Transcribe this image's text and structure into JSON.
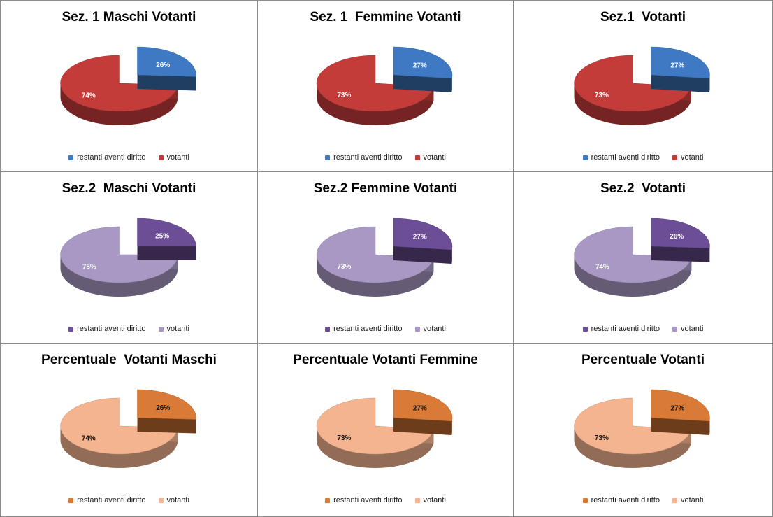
{
  "chart_data": [
    {
      "type": "pie",
      "title": "Sez. 1 Maschi Votanti",
      "labels": [
        "restanti aventi diritto",
        "votanti"
      ],
      "values": [
        26,
        74
      ],
      "data_labels": [
        "26%",
        "74%"
      ],
      "colors": [
        "#3f79c4",
        "#c43c3a"
      ],
      "legend_position": "bottom"
    },
    {
      "type": "pie",
      "title": "Sez. 1  Femmine Votanti",
      "labels": [
        "restanti aventi diritto",
        "votanti"
      ],
      "values": [
        27,
        73
      ],
      "data_labels": [
        "27%",
        "73%"
      ],
      "colors": [
        "#3f79c4",
        "#c43c3a"
      ],
      "legend_position": "bottom"
    },
    {
      "type": "pie",
      "title": "Sez.1  Votanti",
      "labels": [
        "restanti aventi diritto",
        "votanti"
      ],
      "values": [
        27,
        73
      ],
      "data_labels": [
        "27%",
        "73%"
      ],
      "colors": [
        "#3f79c4",
        "#c43c3a"
      ],
      "legend_position": "bottom"
    },
    {
      "type": "pie",
      "title": "Sez.2  Maschi Votanti",
      "labels": [
        "restanti aventi diritto",
        "votanti"
      ],
      "values": [
        25,
        75
      ],
      "data_labels": [
        "25%",
        "75%"
      ],
      "colors": [
        "#6b4e96",
        "#a898c3"
      ],
      "legend_position": "bottom"
    },
    {
      "type": "pie",
      "title": "Sez.2 Femmine Votanti",
      "labels": [
        "restanti aventi diritto",
        "votanti"
      ],
      "values": [
        27,
        73
      ],
      "data_labels": [
        "27%",
        "73%"
      ],
      "colors": [
        "#6b4e96",
        "#a898c3"
      ],
      "legend_position": "bottom"
    },
    {
      "type": "pie",
      "title": "Sez.2  Votanti",
      "labels": [
        "restanti aventi diritto",
        "votanti"
      ],
      "values": [
        26,
        74
      ],
      "data_labels": [
        "26%",
        "74%"
      ],
      "colors": [
        "#6b4e96",
        "#a898c3"
      ],
      "legend_position": "bottom"
    },
    {
      "type": "pie",
      "title": "Percentuale  Votanti Maschi",
      "labels": [
        "restanti aventi diritto",
        "votanti"
      ],
      "values": [
        26,
        74
      ],
      "data_labels": [
        "26%",
        "74%"
      ],
      "colors": [
        "#d97a36",
        "#f4b48f"
      ],
      "legend_position": "bottom"
    },
    {
      "type": "pie",
      "title": "Percentuale Votanti Femmine",
      "labels": [
        "restanti aventi diritto",
        "votanti"
      ],
      "values": [
        27,
        73
      ],
      "data_labels": [
        "27%",
        "73%"
      ],
      "colors": [
        "#d97a36",
        "#f4b48f"
      ],
      "legend_position": "bottom"
    },
    {
      "type": "pie",
      "title": "Percentuale Votanti",
      "labels": [
        "restanti aventi diritto",
        "votanti"
      ],
      "values": [
        27,
        73
      ],
      "data_labels": [
        "27%",
        "73%"
      ],
      "colors": [
        "#d97a36",
        "#f4b48f"
      ],
      "legend_position": "bottom"
    }
  ]
}
